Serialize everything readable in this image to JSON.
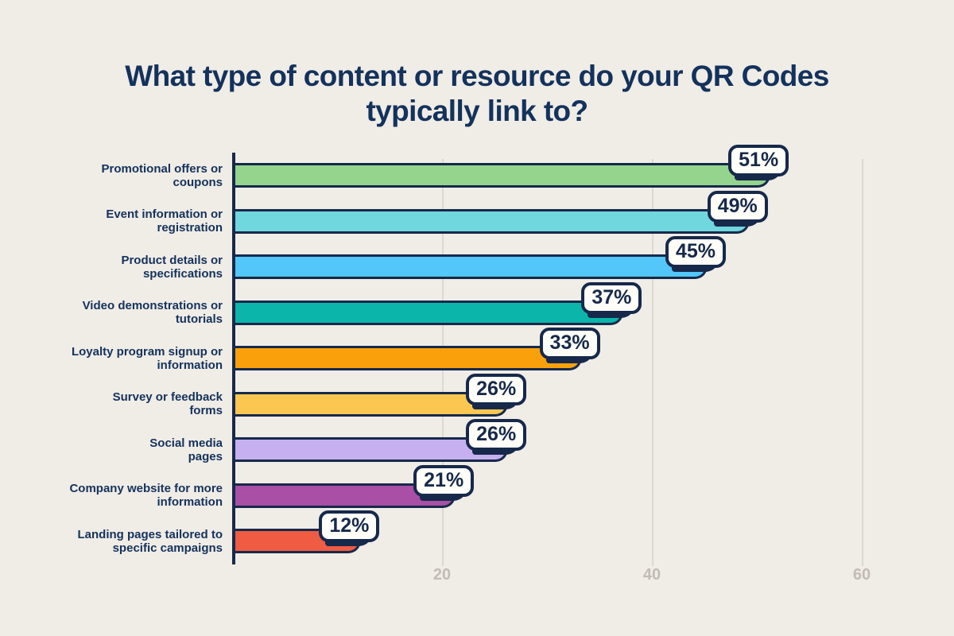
{
  "title": "What type of content or resource do your QR Codes typically link to?",
  "colors": {
    "background": "#F0ECE6",
    "ink_outline": "#16294B",
    "label_text": "#14325C",
    "title_text": "#13325C",
    "grid_line": "#DDD8D2",
    "tick_text": "#C2BCB5",
    "badge_background": "#FFFDF8"
  },
  "chart_data": {
    "type": "bar",
    "orientation": "horizontal",
    "title": "What type of content or resource do your QR Codes typically link to?",
    "categories": [
      "Promotional offers or coupons",
      "Event information or registration",
      "Product details or specifications",
      "Video demonstrations or tutorials",
      "Loyalty program signup or information",
      "Survey or feedback forms",
      "Social media pages",
      "Company website for more information",
      "Landing pages tailored to specific campaigns"
    ],
    "category_lines": [
      [
        "Promotional offers or",
        "coupons"
      ],
      [
        "Event information or",
        "registration"
      ],
      [
        "Product details or",
        "specifications"
      ],
      [
        "Video demonstrations or",
        "tutorials"
      ],
      [
        "Loyalty program signup or",
        "information"
      ],
      [
        "Survey or feedback",
        "forms"
      ],
      [
        "Social media",
        "pages"
      ],
      [
        "Company website for more",
        "information"
      ],
      [
        "Landing pages tailored to",
        "specific campaigns"
      ]
    ],
    "values": [
      51,
      49,
      45,
      37,
      33,
      26,
      26,
      21,
      12
    ],
    "value_labels": [
      "51%",
      "49%",
      "45%",
      "37%",
      "33%",
      "26%",
      "26%",
      "21%",
      "12%"
    ],
    "bar_colors": [
      "#94D48D",
      "#70D7DE",
      "#53C6FA",
      "#0CB5AA",
      "#F9A00B",
      "#FBC751",
      "#C6B0F0",
      "#A94FA5",
      "#EF5B43"
    ],
    "xlabel": "",
    "ylabel": "",
    "x_ticks": [
      20,
      40,
      60
    ],
    "xlim": [
      0,
      65
    ],
    "grid": "vertical-light",
    "legend": "none"
  }
}
